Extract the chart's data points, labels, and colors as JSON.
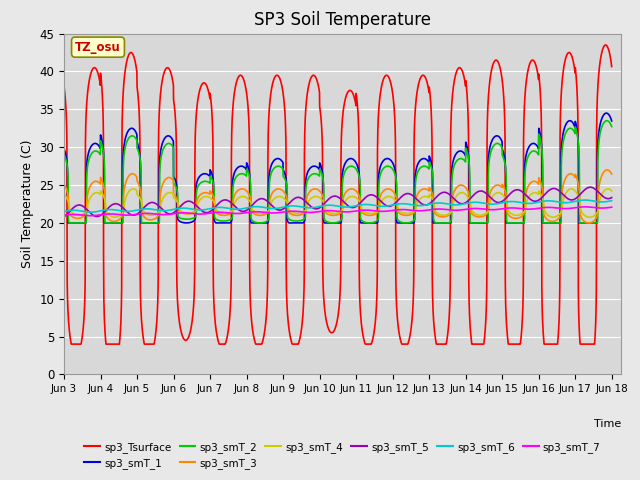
{
  "title": "SP3 Soil Temperature",
  "ylabel": "Soil Temperature (C)",
  "xlabel": "Time",
  "ylim": [
    0,
    45
  ],
  "xlim_start": 0,
  "xlim_end": 366,
  "annotation": "TZ_osu",
  "fig_facecolor": "#e8e8e8",
  "ax_facecolor": "#d8d8d8",
  "series": {
    "sp3_Tsurface": {
      "color": "#ff0000",
      "lw": 1.2
    },
    "sp3_smT_1": {
      "color": "#0000dd",
      "lw": 1.2
    },
    "sp3_smT_2": {
      "color": "#00cc00",
      "lw": 1.2
    },
    "sp3_smT_3": {
      "color": "#ff8800",
      "lw": 1.2
    },
    "sp3_smT_4": {
      "color": "#cccc00",
      "lw": 1.2
    },
    "sp3_smT_5": {
      "color": "#9900bb",
      "lw": 1.2
    },
    "sp3_smT_6": {
      "color": "#00cccc",
      "lw": 1.2
    },
    "sp3_smT_7": {
      "color": "#ff00ff",
      "lw": 1.2
    }
  },
  "xtick_labels": [
    "Jun 3",
    "Jun 4",
    "Jun 5",
    "Jun 6",
    "Jun 7",
    "Jun 8",
    "Jun 9",
    "Jun 10",
    "Jun 11",
    "Jun 12",
    "Jun 13",
    "Jun 14",
    "Jun 15",
    "Jun 16",
    "Jun 17",
    "Jun 18"
  ],
  "xtick_positions": [
    0,
    24,
    48,
    72,
    96,
    120,
    144,
    168,
    192,
    216,
    240,
    264,
    288,
    312,
    336,
    360
  ],
  "ytick_positions": [
    0,
    5,
    10,
    15,
    20,
    25,
    30,
    35,
    40,
    45
  ]
}
